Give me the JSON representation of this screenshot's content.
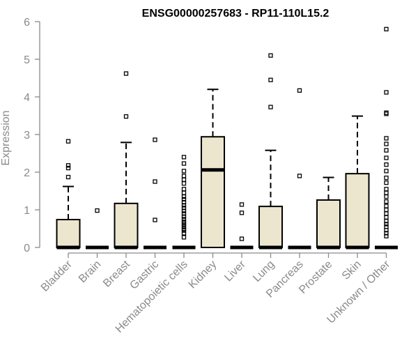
{
  "chart_data": {
    "type": "boxplot",
    "title": "ENSG00000257683 - RP11-110L15.2",
    "xlabel": "",
    "ylabel": "Expression",
    "ylim": [
      0,
      6
    ],
    "yticks": [
      0,
      1,
      2,
      3,
      4,
      5,
      6
    ],
    "grid": false,
    "colors": {
      "box_fill": "#EDE6CF",
      "box_stroke": "#000000",
      "axis": "#8A8A8A",
      "title": "#000000"
    },
    "categories": [
      "Bladder",
      "Brain",
      "Breast",
      "Gastric",
      "Hematopoietic cells",
      "Kidney",
      "Liver",
      "Lung",
      "Pancreas",
      "Prostate",
      "Skin",
      "Unknown / Other"
    ],
    "boxes": [
      {
        "min": 0,
        "q1": 0,
        "median": 0,
        "q3": 0.74,
        "max": 1.62,
        "outliers": [
          1.87,
          2.11,
          2.18,
          2.82
        ]
      },
      {
        "min": 0,
        "q1": 0,
        "median": 0,
        "q3": 0,
        "max": 0,
        "outliers": [
          0.98
        ]
      },
      {
        "min": 0,
        "q1": 0,
        "median": 0,
        "q3": 1.17,
        "max": 2.79,
        "outliers": [
          3.48,
          4.62
        ]
      },
      {
        "min": 0,
        "q1": 0,
        "median": 0,
        "q3": 0,
        "max": 0,
        "outliers": [
          0.73,
          1.75,
          2.86
        ]
      },
      {
        "min": 0,
        "q1": 0,
        "median": 0,
        "q3": 0,
        "max": 0,
        "outliers": [
          0.27,
          0.38,
          0.45,
          0.5,
          0.56,
          0.62,
          0.68,
          0.75,
          0.82,
          0.9,
          0.97,
          1.05,
          1.12,
          1.2,
          1.28,
          1.35,
          1.45,
          1.55,
          1.7,
          1.8,
          1.9,
          2.03,
          2.23,
          2.4
        ]
      },
      {
        "min": 0,
        "q1": 0,
        "median": 2.06,
        "q3": 2.94,
        "max": 4.2,
        "outliers": []
      },
      {
        "min": 0,
        "q1": 0,
        "median": 0,
        "q3": 0,
        "max": 0,
        "outliers": [
          0.23,
          0.92,
          1.14
        ]
      },
      {
        "min": 0,
        "q1": 0,
        "median": 0,
        "q3": 1.09,
        "max": 2.58,
        "outliers": [
          3.73,
          4.45,
          5.1
        ]
      },
      {
        "min": 0,
        "q1": 0,
        "median": 0,
        "q3": 0,
        "max": 0,
        "outliers": [
          1.9,
          4.17
        ]
      },
      {
        "min": 0,
        "q1": 0,
        "median": 0,
        "q3": 1.26,
        "max": 1.86,
        "outliers": []
      },
      {
        "min": 0,
        "q1": 0,
        "median": 0,
        "q3": 1.96,
        "max": 3.49,
        "outliers": []
      },
      {
        "min": 0,
        "q1": 0,
        "median": 0,
        "q3": 0,
        "max": 0,
        "outliers": [
          0.3,
          0.38,
          0.46,
          0.55,
          0.62,
          0.7,
          0.8,
          0.9,
          1.0,
          1.1,
          1.22,
          1.35,
          1.45,
          1.55,
          1.72,
          1.85,
          2.03,
          2.2,
          2.38,
          2.58,
          2.75,
          2.9,
          3.55,
          3.58,
          4.12,
          5.8
        ]
      }
    ]
  }
}
